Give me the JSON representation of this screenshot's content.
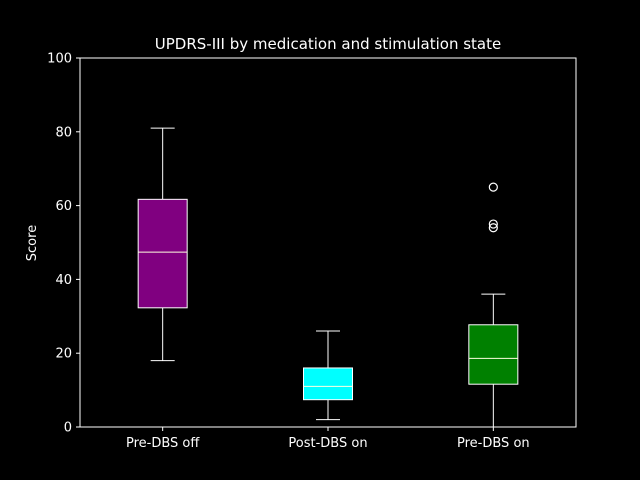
{
  "chart_data": {
    "type": "box",
    "title": "UPDRS-III by medication and stimulation state",
    "xlabel": "",
    "ylabel": "Score",
    "ylim": [
      0,
      100
    ],
    "yticks": [
      0,
      20,
      40,
      60,
      80,
      100
    ],
    "grid": false,
    "categories": [
      "Pre-DBS off",
      "Post-DBS on",
      "Pre-DBS on"
    ],
    "boxes": [
      {
        "category": "Pre-DBS off",
        "whisker_low": 18,
        "q1": 32.3,
        "median": 47.4,
        "q3": 61.7,
        "whisker_high": 81,
        "outliers": [],
        "color": "#800080"
      },
      {
        "category": "Post-DBS on",
        "whisker_low": 2,
        "q1": 7.4,
        "median": 11,
        "q3": 16,
        "whisker_high": 26,
        "outliers": [],
        "color": "#00ffff"
      },
      {
        "category": "Pre-DBS on",
        "whisker_low": 0,
        "q1": 11.6,
        "median": 18.6,
        "q3": 27.7,
        "whisker_high": 36,
        "outliers": [
          54,
          55,
          65
        ],
        "color": "#008000"
      }
    ],
    "median_color": "#ffffe0",
    "background": "#000000",
    "foreground": "#ffffff"
  }
}
